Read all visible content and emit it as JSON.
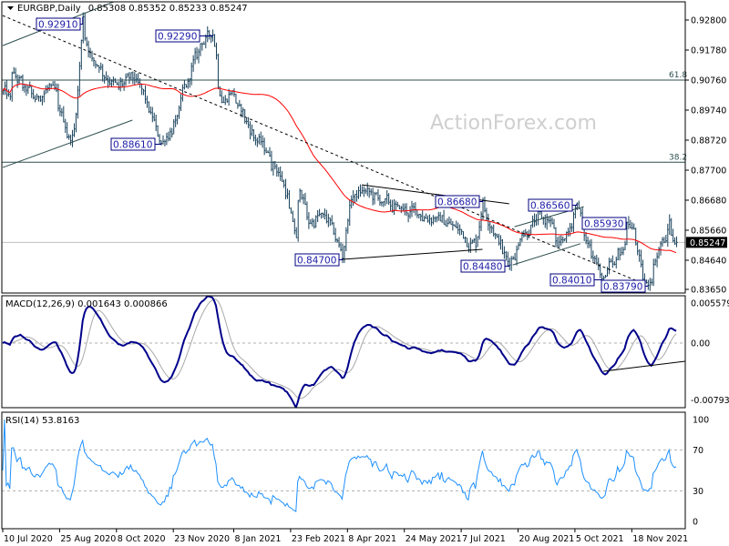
{
  "header": {
    "symbol": "EURGBP,Daily",
    "ohlc": "0.85308 0.85352 0.85233 0.85247"
  },
  "watermark": "ActionForex.com",
  "chart_data": {
    "type": "ohlc",
    "title": "EURGBP,Daily",
    "colors": {
      "bars": "#17405a",
      "ma": "#ff0000",
      "macd": "#00008b",
      "signal": "#a9a9a9",
      "rsi": "#1e90ff",
      "label": "#000080",
      "fib": "#2f4f4f"
    },
    "price": {
      "last": 0.85247,
      "last_label": "0.85247",
      "ylim": [
        0.8365,
        0.928
      ],
      "close_keypoints": {
        "dates": [
          "2020-07-10",
          "2020-07-16",
          "2020-07-17",
          "2020-07-27",
          "2020-08-05",
          "2020-08-17",
          "2020-08-24",
          "2020-09-02",
          "2020-09-07",
          "2020-09-11",
          "2020-09-18",
          "2020-09-25",
          "2020-10-09",
          "2020-10-23",
          "2020-11-05",
          "2020-11-12",
          "2020-11-24",
          "2020-12-04",
          "2020-12-14",
          "2020-12-23",
          "2020-12-30",
          "2021-01-07",
          "2021-01-12",
          "2021-01-25",
          "2021-02-04",
          "2021-02-15",
          "2021-02-22",
          "2021-02-26",
          "2021-03-02",
          "2021-03-09",
          "2021-03-19",
          "2021-03-26",
          "2021-04-02",
          "2021-04-05",
          "2021-04-09",
          "2021-04-13",
          "2021-04-21",
          "2021-05-05",
          "2021-05-19",
          "2021-06-03",
          "2021-06-17",
          "2021-07-01",
          "2021-07-19",
          "2021-07-23",
          "2021-08-03",
          "2021-08-13",
          "2021-08-24",
          "2021-09-03",
          "2021-09-15",
          "2021-09-21",
          "2021-09-29",
          "2021-10-06",
          "2021-10-13",
          "2021-10-20",
          "2021-10-26",
          "2021-11-04",
          "2021-11-11",
          "2021-11-15",
          "2021-11-19",
          "2021-11-24",
          "2021-11-26",
          "2021-12-01",
          "2021-12-06",
          "2021-12-10",
          "2021-12-15",
          "2021-12-17",
          "2021-12-21",
          "2021-12-23"
        ],
        "values": [
          0.904,
          0.902,
          0.91,
          0.905,
          0.901,
          0.906,
          0.898,
          0.887,
          0.896,
          0.9291,
          0.915,
          0.912,
          0.905,
          0.908,
          0.895,
          0.8861,
          0.894,
          0.908,
          0.92,
          0.9229,
          0.9,
          0.904,
          0.899,
          0.888,
          0.883,
          0.875,
          0.864,
          0.854,
          0.87,
          0.859,
          0.862,
          0.859,
          0.85,
          0.847,
          0.865,
          0.868,
          0.87,
          0.866,
          0.864,
          0.862,
          0.861,
          0.858,
          0.851,
          0.8668,
          0.855,
          0.8448,
          0.855,
          0.86,
          0.86,
          0.851,
          0.856,
          0.8656,
          0.853,
          0.847,
          0.8401,
          0.845,
          0.85,
          0.8593,
          0.857,
          0.848,
          0.84,
          0.8379,
          0.845,
          0.852,
          0.853,
          0.86,
          0.853,
          0.85247
        ]
      },
      "moving_average_period": 55,
      "axis_ticks": [
        "0.92800",
        "0.91780",
        "0.90760",
        "0.89740",
        "0.88720",
        "0.87700",
        "0.86680",
        "0.85660",
        "0.84640",
        "0.83650"
      ]
    },
    "pivot_labels": [
      {
        "text": "0.92910",
        "date": "2020-09-11"
      },
      {
        "text": "0.92290",
        "date": "2020-12-23"
      },
      {
        "text": "0.88610",
        "date": "2020-11-12"
      },
      {
        "text": "0.84700",
        "date": "2021-04-05"
      },
      {
        "text": "0.86680",
        "date": "2021-07-23"
      },
      {
        "text": "0.84480",
        "date": "2021-08-13"
      },
      {
        "text": "0.86560",
        "date": "2021-10-06"
      },
      {
        "text": "0.85930",
        "date": "2021-11-15"
      },
      {
        "text": "0.84010",
        "date": "2021-10-26"
      },
      {
        "text": "0.83790",
        "date": "2021-12-01"
      }
    ],
    "fib_levels": [
      {
        "label": "61.8",
        "price": 0.9076
      },
      {
        "label": "38.2",
        "price": 0.8797
      }
    ],
    "trendlines": [
      {
        "style": "dashed",
        "from": [
          "2020-07-09",
          0.9295
        ],
        "to": [
          "2021-11-22",
          0.8396
        ]
      },
      {
        "style": "solid-channel",
        "from": [
          "2020-07-09",
          0.9193
        ],
        "to": [
          "2020-10-09",
          0.9348
        ]
      },
      {
        "style": "solid-channel",
        "from": [
          "2020-07-09",
          0.8779
        ],
        "to": [
          "2020-10-21",
          0.894
        ]
      },
      {
        "style": "solid",
        "from": [
          "2021-04-05",
          0.8467
        ],
        "to": [
          "2021-07-23",
          0.8501
        ]
      },
      {
        "style": "solid",
        "from": [
          "2021-04-20",
          0.872
        ],
        "to": [
          "2021-08-13",
          0.8656
        ]
      },
      {
        "style": "solid-channel",
        "from": [
          "2021-08-17",
          0.8448
        ],
        "to": [
          "2021-10-08",
          0.852
        ]
      },
      {
        "style": "solid-channel",
        "from": [
          "2021-08-18",
          0.8578
        ],
        "to": [
          "2021-10-12",
          0.8646
        ]
      }
    ],
    "macd": {
      "label": "MACD(12,26,9) 0.001643 0.000866",
      "params": [
        12,
        26,
        9
      ],
      "ylim": [
        -0.007931,
        0.005579
      ],
      "axis_ticks": [
        "0.005579",
        "0.00",
        "-0.007931"
      ],
      "trendline": {
        "from": [
          "2021-10-27",
          -0.00393
        ],
        "to": [
          "2021-12-30",
          -0.00254
        ]
      }
    },
    "rsi": {
      "label": "RSI(14) 53.8163",
      "period": 14,
      "ylim": [
        0,
        100
      ],
      "levels": [
        70,
        30
      ],
      "axis_ticks": [
        "100",
        "70",
        "30",
        "0"
      ]
    },
    "x_axis": {
      "ticks": [
        "10 Jul 2020",
        "25 Aug 2020",
        "8 Oct 2020",
        "23 Nov 2020",
        "8 Jan 2021",
        "23 Feb 2021",
        "8 Apr 2021",
        "24 May 2021",
        "7 Jul 2021",
        "20 Aug 2021",
        "5 Oct 2021",
        "18 Nov 2021"
      ]
    },
    "grid": false
  }
}
